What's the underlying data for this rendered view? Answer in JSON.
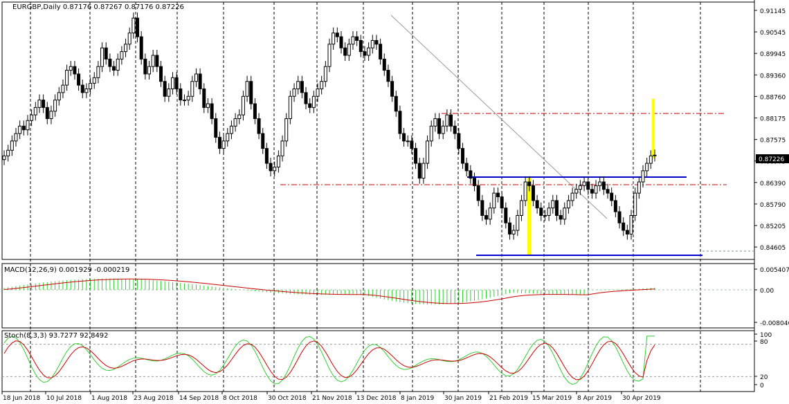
{
  "title_line": "EURGBP,Daily  0.87176 0.87267 0.87176 0.87226",
  "colors": {
    "background": "#ffffff",
    "border": "#000000",
    "candle": "#000000",
    "bull_fill": "#ffffff",
    "bear_fill": "#000000",
    "blue_lines": "#0000cc",
    "red_dashed": "#cc0000",
    "trend_line": "#999999",
    "highlight": "#ffff00",
    "macd_hist": "#32cd32",
    "signal": "#cc0000",
    "stoch_main": "#32cd32",
    "stoch_signal": "#cc0000",
    "grid": "#000000",
    "price_badge_bg": "#000000",
    "price_badge_text": "#ffffff"
  },
  "price_axis": {
    "labels": [
      "0.91145",
      "0.90545",
      "0.89945",
      "0.89360",
      "0.88760",
      "0.88175",
      "0.87575",
      "0.86975",
      "0.86390",
      "0.85790",
      "0.85205",
      "0.84605"
    ],
    "current": "0.87226"
  },
  "macd": {
    "label": "MACD(12,26,9) 0.001929 -0.000219",
    "axis": [
      "0.005407",
      "0.00",
      "-0.008046"
    ]
  },
  "stoch": {
    "label": "Stoch(8,3,3) 93.7277 92.8492",
    "axis": [
      "100",
      "80",
      "20",
      "0"
    ]
  },
  "time_axis": [
    "18 Jun 2018",
    "10 Jul 2018",
    "1 Aug 2018",
    "23 Aug 2018",
    "14 Sep 2018",
    "8 Oct 2018",
    "30 Oct 2018",
    "21 Nov 2018",
    "13 Dec 2018",
    "8 Jan 2019",
    "30 Jan 2019",
    "21 Feb 2019",
    "15 Mar 2019",
    "8 Apr 2019",
    "30 Apr 2019"
  ],
  "chart_data": {
    "type": "candlestick",
    "symbol": "EURGBP",
    "timeframe": "Daily",
    "ohlc_last": {
      "open": 0.87176,
      "high": 0.87267,
      "low": 0.87176,
      "close": 0.87226
    },
    "ylim": [
      0.84605,
      0.91145
    ],
    "close_series": [
      0.872,
      0.8735,
      0.876,
      0.878,
      0.88,
      0.879,
      0.8815,
      0.883,
      0.885,
      0.887,
      0.885,
      0.882,
      0.884,
      0.887,
      0.889,
      0.891,
      0.895,
      0.896,
      0.894,
      0.891,
      0.889,
      0.89,
      0.8915,
      0.893,
      0.896,
      0.901,
      0.898,
      0.896,
      0.895,
      0.898,
      0.9,
      0.902,
      0.905,
      0.909,
      0.904,
      0.898,
      0.894,
      0.896,
      0.899,
      0.896,
      0.892,
      0.888,
      0.89,
      0.893,
      0.89,
      0.887,
      0.887,
      0.888,
      0.892,
      0.894,
      0.89,
      0.885,
      0.886,
      0.882,
      0.877,
      0.874,
      0.876,
      0.878,
      0.88,
      0.882,
      0.883,
      0.888,
      0.892,
      0.886,
      0.882,
      0.878,
      0.874,
      0.87,
      0.868,
      0.869,
      0.872,
      0.876,
      0.882,
      0.888,
      0.89,
      0.892,
      0.889,
      0.886,
      0.885,
      0.888,
      0.89,
      0.892,
      0.896,
      0.902,
      0.905,
      0.904,
      0.901,
      0.899,
      0.902,
      0.904,
      0.903,
      0.9,
      0.899,
      0.901,
      0.903,
      0.902,
      0.898,
      0.895,
      0.892,
      0.888,
      0.884,
      0.878,
      0.876,
      0.876,
      0.874,
      0.87,
      0.866,
      0.87,
      0.876,
      0.88,
      0.882,
      0.878,
      0.88,
      0.883,
      0.88,
      0.878,
      0.874,
      0.87,
      0.868,
      0.866,
      0.864,
      0.86,
      0.856,
      0.855,
      0.858,
      0.862,
      0.861,
      0.858,
      0.854,
      0.851,
      0.852,
      0.856,
      0.86,
      0.865,
      0.864,
      0.86,
      0.858,
      0.856,
      0.856,
      0.858,
      0.86,
      0.856,
      0.855,
      0.858,
      0.86,
      0.862,
      0.863,
      0.864,
      0.865,
      0.863,
      0.862,
      0.864,
      0.865,
      0.863,
      0.862,
      0.86,
      0.857,
      0.854,
      0.852,
      0.851,
      0.856,
      0.862,
      0.865,
      0.868,
      0.87,
      0.872,
      0.8722
    ]
  }
}
